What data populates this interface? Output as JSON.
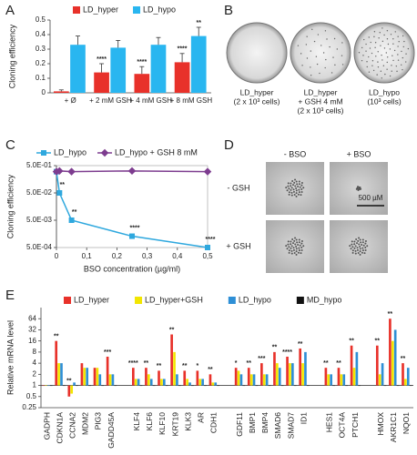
{
  "panel_labels": [
    "A",
    "B",
    "C",
    "D",
    "E"
  ],
  "chart_data": [
    {
      "type": "bar",
      "ylabel": "Cloning efficiency",
      "categories": [
        "+ Ø",
        "+ 2 mM GSH",
        "+ 4 mM GSH",
        "+ 8 mM GSH"
      ],
      "ylim": [
        0,
        0.5
      ],
      "yticks": [
        0,
        0.1,
        0.2,
        0.3,
        0.4,
        0.5
      ],
      "legend": "top",
      "series": [
        {
          "name": "LD_hyper",
          "color": "#e8312a",
          "values": [
            0.01,
            0.14,
            0.13,
            0.21
          ],
          "errors": [
            0.01,
            0.06,
            0.05,
            0.06
          ],
          "significance": [
            null,
            "****",
            "****",
            "****"
          ]
        },
        {
          "name": "LD_hypo",
          "color": "#29b6f0",
          "values": [
            0.33,
            0.31,
            0.33,
            0.39
          ],
          "errors": [
            0.06,
            0.05,
            0.05,
            0.06
          ],
          "significance": [
            null,
            null,
            null,
            "**"
          ]
        }
      ]
    },
    {
      "type": "line",
      "xlabel": "BSO concentration (µg/ml)",
      "ylabel": "Cloning efficiency",
      "log_y": true,
      "x": [
        0,
        0.01,
        0.05,
        0.25,
        0.5
      ],
      "xlim": [
        0,
        0.5
      ],
      "xticks": [
        0,
        {
          "value": 0.1,
          "label": "0,1"
        },
        {
          "value": 0.2,
          "label": "0,2"
        },
        {
          "value": 0.3,
          "label": "0,3"
        },
        {
          "value": 0.4,
          "label": "0,4"
        },
        {
          "value": 0.5,
          "label": "0,5"
        }
      ],
      "ylim": [
        0.0005,
        0.5
      ],
      "yticks": [
        {
          "value": 0.0005,
          "label": "5.0E-04"
        },
        {
          "value": 0.005,
          "label": "5.0E-03"
        },
        {
          "value": 0.05,
          "label": "5.0E-02"
        },
        {
          "value": 0.5,
          "label": "5.0E-01"
        }
      ],
      "legend": "top",
      "series": [
        {
          "name": "LD_hypo",
          "color": "#2fa8de",
          "marker": "square",
          "values": [
            0.3,
            0.05,
            0.005,
            0.0013,
            0.0005
          ],
          "significance": [
            null,
            "**",
            "**",
            "****",
            "****"
          ]
        },
        {
          "name": "LD_hypo + GSH 8 mM",
          "color": "#7d3c8f",
          "marker": "diamond",
          "values": [
            0.3,
            0.32,
            0.3,
            0.32,
            0.3
          ]
        }
      ]
    },
    {
      "type": "bar",
      "ylabel": "Relative mRNA level",
      "log_y": true,
      "baseline": 1,
      "categories": [
        "GADPH",
        "CDKN1A",
        "CCNA2",
        "MDM2",
        "PIG3",
        "GADD45A",
        null,
        "KLF4",
        "KLF6",
        "KLF10",
        "KRT19",
        "KLK3",
        "AR",
        "CDH1",
        null,
        "GDF11",
        "BMP1",
        "BMP4",
        "SMAD6",
        "SMAD7",
        "ID1",
        null,
        "HES1",
        "OCT4A",
        "PTCH1",
        null,
        "HMOX",
        "AKR1C1",
        "NQO1"
      ],
      "ylim": [
        0.25,
        128
      ],
      "yticks": [
        0.25,
        0.5,
        1,
        2,
        4,
        8,
        16,
        32,
        64
      ],
      "legend": "top",
      "series": [
        {
          "name": "LD_hyper",
          "color": "#e8312a",
          "values": [
            1,
            16,
            0.5,
            4,
            3,
            6,
            null,
            3,
            3,
            2.5,
            24,
            2.5,
            2.5,
            2,
            null,
            3,
            3,
            4,
            8,
            6,
            10,
            null,
            3,
            3,
            12,
            null,
            12,
            64,
            4
          ],
          "significance": [
            null,
            "**",
            "**",
            null,
            null,
            "***",
            null,
            "****",
            "**",
            "**",
            "**",
            "**",
            "*",
            "**",
            null,
            "*",
            "**",
            "***",
            "**",
            "****",
            "**",
            null,
            "**",
            "**",
            "**",
            null,
            "**",
            "**",
            "**"
          ]
        },
        {
          "name": "LD_hyper+GSH",
          "color": "#f2e600",
          "values": [
            1,
            4,
            0.6,
            3,
            3,
            2,
            null,
            1.5,
            2,
            1.5,
            8,
            1.5,
            1.5,
            1.2,
            null,
            2.5,
            2,
            2,
            4,
            4,
            4,
            null,
            2,
            2,
            3,
            null,
            2,
            16,
            1.5
          ]
        },
        {
          "name": "LD_hypo",
          "color": "#2e8fd6",
          "values": [
            1,
            4,
            1.2,
            3,
            2,
            2,
            null,
            1.5,
            1.5,
            1.5,
            2,
            1.2,
            1.5,
            1.2,
            null,
            2,
            2,
            2,
            3,
            4,
            8,
            null,
            2,
            2,
            8,
            null,
            4,
            32,
            3
          ]
        },
        {
          "name": "MD_hypo",
          "color": "#111111",
          "values": [
            1,
            1,
            1,
            1,
            1,
            1,
            null,
            1,
            1,
            1,
            1,
            1,
            1,
            1,
            null,
            1,
            1,
            1,
            1,
            1,
            1,
            null,
            1,
            1,
            1,
            null,
            1,
            1,
            1
          ]
        }
      ]
    }
  ],
  "images_b": {
    "captions": [
      [
        "LD_hyper",
        "(2 x 10³ cells)"
      ],
      [
        "LD_hyper",
        "+ GSH 4 mM",
        "(2 x 10³ cells)"
      ],
      [
        "LD_hypo",
        "(10³ cells)"
      ]
    ]
  },
  "images_d": {
    "columns": [
      "- BSO",
      "+ BSO"
    ],
    "rows": [
      "- GSH",
      "+ GSH"
    ],
    "scale_bar": "500 µM"
  }
}
